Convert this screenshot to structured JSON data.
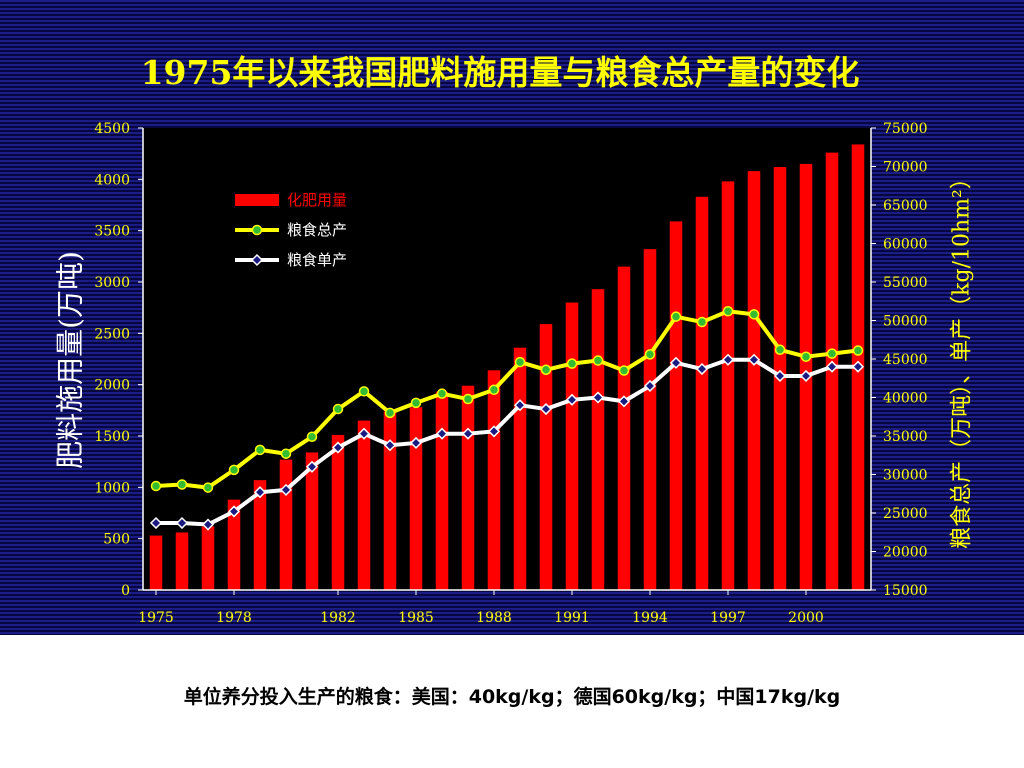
{
  "slide": {
    "title": "1975年以来我国肥料施用量与粮食总产量的变化",
    "caption": "单位养分投入生产的粮食：美国：40kg/kg；德国60kg/kg；中国17kg/kg"
  },
  "chart_data": {
    "type": "bar+line",
    "title": "1975年以来我国肥料施用量与粮食总产量的变化",
    "ylabel_left": "肥料施用量(万吨)",
    "ylabel_right": "粮食总产（万吨）、单产（kg/10hm²）",
    "ylim_left": [
      0,
      4500
    ],
    "ylim_right": [
      15000,
      75000
    ],
    "yticks_left": [
      "0",
      "500",
      "1000",
      "1500",
      "2000",
      "2500",
      "3000",
      "3500",
      "4000",
      "4500"
    ],
    "yticks_right": [
      "15000",
      "20000",
      "25000",
      "30000",
      "35000",
      "40000",
      "45000",
      "50000",
      "55000",
      "60000",
      "65000",
      "70000",
      "75000"
    ],
    "x": [
      1975,
      1976,
      1977,
      1978,
      1979,
      1980,
      1981,
      1982,
      1983,
      1984,
      1985,
      1986,
      1987,
      1988,
      1989,
      1990,
      1991,
      1992,
      1993,
      1994,
      1995,
      1996,
      1997,
      1998,
      1999,
      2000,
      2001,
      2002
    ],
    "xtick_labels": [
      "1975",
      "1978",
      "1982",
      "1985",
      "1988",
      "1991",
      "1994",
      "1997",
      "2000"
    ],
    "xtick_positions": [
      1975,
      1978,
      1982,
      1985,
      1988,
      1991,
      1994,
      1997,
      2000
    ],
    "legend_position": "top-left",
    "colors": {
      "bar": "#ff0000",
      "total": "#ffff00",
      "total_marker": "#33bb33",
      "unit": "#ffffff",
      "unit_marker": "#1a1a80"
    },
    "series": [
      {
        "name": "化肥用量",
        "kind": "bar",
        "axis": "left",
        "values": [
          530,
          560,
          620,
          880,
          1070,
          1270,
          1340,
          1510,
          1650,
          1740,
          1780,
          1930,
          1990,
          2140,
          2360,
          2590,
          2800,
          2930,
          3150,
          3320,
          3590,
          3830,
          3980,
          4080,
          4120,
          4150,
          4260,
          4340
        ]
      },
      {
        "name": "粮食总产",
        "kind": "line",
        "axis": "right",
        "values": [
          28500,
          28700,
          28300,
          30600,
          33200,
          32700,
          34900,
          38500,
          40800,
          38000,
          39300,
          40500,
          39800,
          41000,
          44600,
          43600,
          44400,
          44800,
          43500,
          45600,
          50500,
          49800,
          51200,
          50800,
          46200,
          45300,
          45700,
          46100
        ]
      },
      {
        "name": "粮食单产",
        "kind": "line",
        "axis": "right",
        "values": [
          23700,
          23700,
          23500,
          25200,
          27700,
          28000,
          31000,
          33500,
          35300,
          33800,
          34100,
          35300,
          35300,
          35600,
          39000,
          38500,
          39700,
          40000,
          39500,
          41500,
          44500,
          43700,
          44900,
          44900,
          42800,
          42800,
          44000,
          44000
        ]
      }
    ]
  }
}
